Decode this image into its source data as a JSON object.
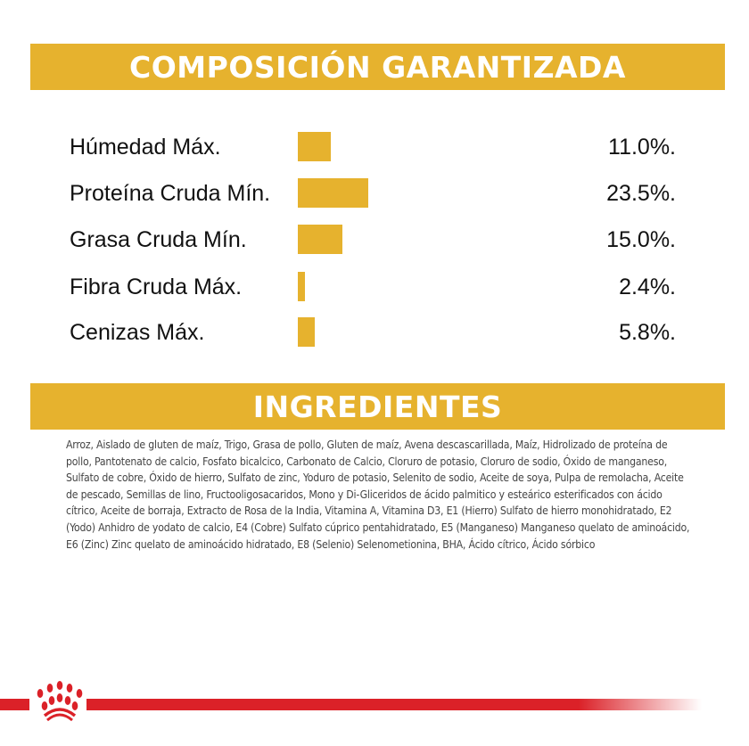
{
  "colors": {
    "accent": "#E6B22E",
    "brand_red": "#DB2128"
  },
  "composition": {
    "title": "COMPOSICIÓN GARANTIZADA",
    "items": [
      {
        "label": "Húmedad Máx.",
        "value": "11.0%.",
        "percent": 11.0
      },
      {
        "label": "Proteína Cruda Mín.",
        "value": "23.5%.",
        "percent": 23.5
      },
      {
        "label": "Grasa Cruda Mín.",
        "value": "15.0%.",
        "percent": 15.0
      },
      {
        "label": "Fibra Cruda Máx.",
        "value": "2.4%.",
        "percent": 2.4
      },
      {
        "label": "Cenizas Máx.",
        "value": "5.8%.",
        "percent": 5.8
      }
    ]
  },
  "ingredients": {
    "title": "INGREDIENTES",
    "text": "Arroz, Aislado de gluten de maíz, Trigo, Grasa de pollo, Gluten de maíz, Avena descascarillada, Maíz, Hidrolizado de proteína de pollo, Pantotenato de calcio, Fosfato bicalcico, Carbonato de Calcio, Cloruro de potasio, Cloruro de sodio, Óxido de manganeso, Sulfato de cobre, Óxido de hierro, Sulfato de zinc, Yoduro de potasio, Selenito de sodio, Aceite de soya, Pulpa de remolacha, Aceite de pescado, Semillas de lino, Fructooligosacaridos, Mono y Di-Gliceridos de ácido palmitico y esteárico esterificados con ácido cítrico, Aceite de borraja, Extracto de Rosa de la India, Vitamina A, Vitamina D3, E1 (Hierro) Sulfato de hierro monohidratado, E2 (Yodo) Anhidro de yodato de calcio, E4 (Cobre) Sulfato cúprico pentahidratado, E5 (Manganeso) Manganeso quelato de aminoácido, E6 (Zinc) Zinc quelato de aminoácido hidratado, E8 (Selenio) Selenometionina, BHA, Ácido cítrico, Ácido sórbico"
  },
  "footer": {
    "logo_icon": "royal-canin-crown-icon"
  }
}
